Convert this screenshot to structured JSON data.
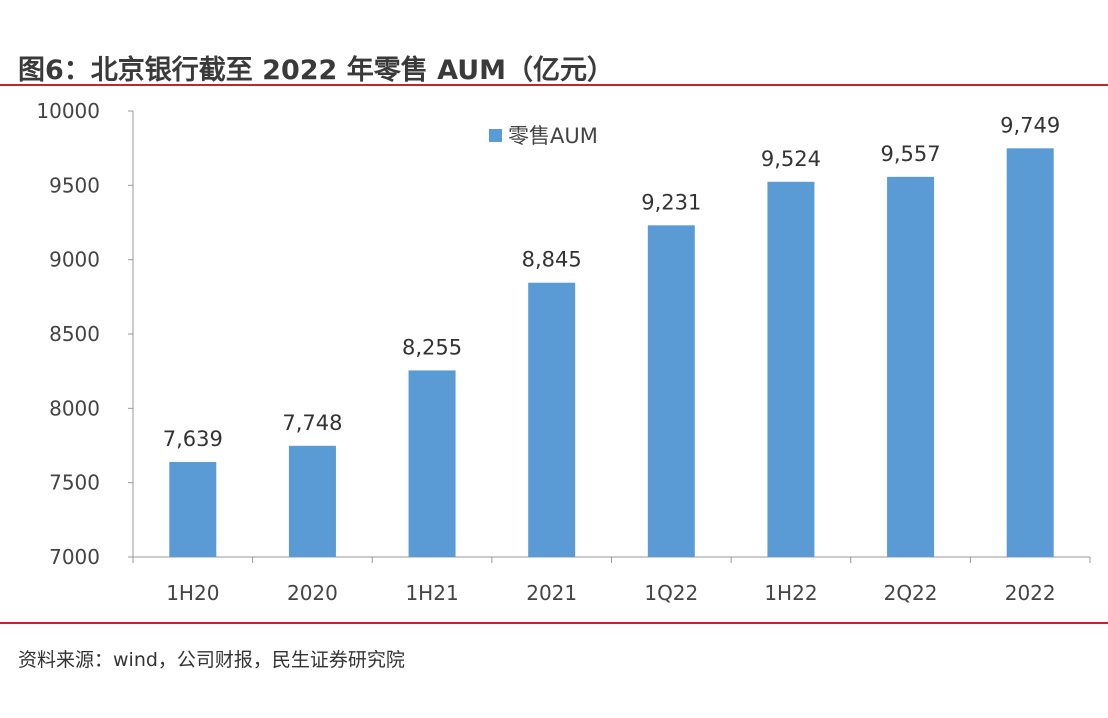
{
  "title": "图6：北京银行截至 2022 年零售 AUM（亿元）",
  "source": "资料来源：wind，公司财报，民生证券研究院",
  "colors": {
    "bar": "#5b9bd5",
    "rule": "#c0272d"
  },
  "chart_data": {
    "type": "bar",
    "categories": [
      "1H20",
      "2020",
      "1H21",
      "2021",
      "1Q22",
      "1H22",
      "2Q22",
      "2022"
    ],
    "series": [
      {
        "name": "零售AUM",
        "values": [
          7639,
          7748,
          8255,
          8845,
          9231,
          9524,
          9557,
          9749
        ]
      }
    ],
    "data_labels": [
      "7,639",
      "7,748",
      "8,255",
      "8,845",
      "9,231",
      "9,524",
      "9,557",
      "9,749"
    ],
    "yticks": [
      "7000",
      "7500",
      "8000",
      "8500",
      "9000",
      "9500",
      "10000"
    ],
    "ylim": [
      7000,
      10000
    ],
    "grid": false,
    "legend": "top-center"
  }
}
